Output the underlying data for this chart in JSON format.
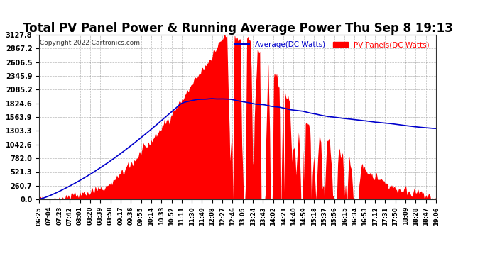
{
  "title": "Total PV Panel Power & Running Average Power Thu Sep 8 19:13",
  "copyright": "Copyright 2022 Cartronics.com",
  "legend_average": "Average(DC Watts)",
  "legend_pv": "PV Panels(DC Watts)",
  "yticks": [
    0.0,
    260.7,
    521.3,
    782.0,
    1042.6,
    1303.3,
    1563.9,
    1824.6,
    2085.2,
    2345.9,
    2606.5,
    2867.2,
    3127.8
  ],
  "ymax": 3127.8,
  "background_color": "#ffffff",
  "pv_color": "#ff0000",
  "avg_color": "#0000cc",
  "grid_color": "#888888",
  "title_fontsize": 12,
  "xtick_labels": [
    "06:25",
    "07:04",
    "07:23",
    "07:42",
    "08:01",
    "08:20",
    "08:39",
    "08:58",
    "09:17",
    "09:36",
    "09:55",
    "10:14",
    "10:33",
    "10:52",
    "11:11",
    "11:30",
    "11:49",
    "12:08",
    "12:27",
    "12:46",
    "13:05",
    "13:24",
    "13:43",
    "14:02",
    "14:21",
    "14:40",
    "14:59",
    "15:18",
    "15:37",
    "15:56",
    "16:15",
    "16:34",
    "16:53",
    "17:12",
    "17:31",
    "17:50",
    "18:09",
    "18:28",
    "18:47",
    "19:06"
  ],
  "n_points": 800,
  "seed": 42
}
